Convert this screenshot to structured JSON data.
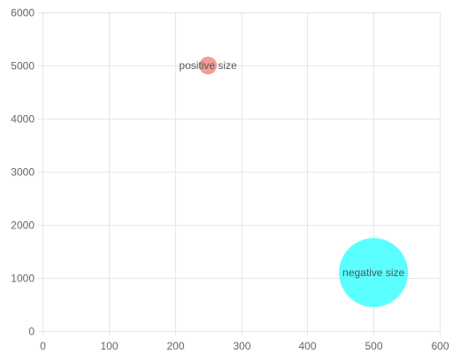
{
  "chart_data": {
    "type": "bubble",
    "title": "",
    "xlabel": "",
    "ylabel": "",
    "xlim": [
      0,
      600
    ],
    "ylim": [
      0,
      6000
    ],
    "x_ticks": [
      "0",
      "100",
      "200",
      "300",
      "400",
      "500",
      "600"
    ],
    "y_ticks": [
      "0",
      "1000",
      "2000",
      "3000",
      "4000",
      "5000",
      "6000"
    ],
    "grid": true,
    "legend": "none",
    "points": [
      {
        "label": "positive size",
        "x": 250,
        "y": 5000,
        "r": 10,
        "color": "#f28b82",
        "opacity": 0.85
      },
      {
        "label": "negative size",
        "x": 500,
        "y": 1100,
        "r": 39,
        "color": "#33ffff",
        "opacity": 0.8
      }
    ]
  }
}
